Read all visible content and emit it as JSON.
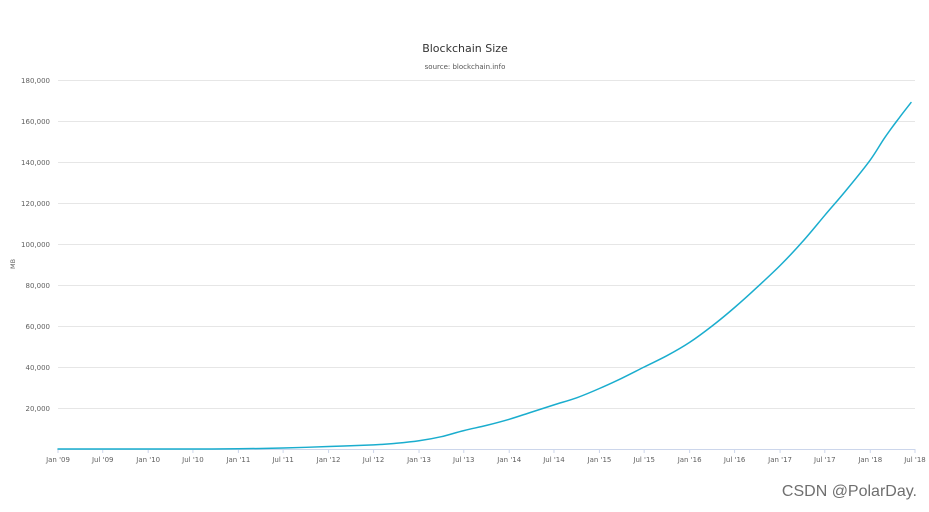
{
  "chart_data": {
    "type": "line",
    "title": "Blockchain Size",
    "subtitle": "source: blockchain.info",
    "xlabel": "",
    "ylabel": "MB",
    "ylim": [
      0,
      180000
    ],
    "yticks": [
      20000,
      40000,
      60000,
      80000,
      100000,
      120000,
      140000,
      160000,
      180000
    ],
    "ytick_labels": [
      "20,000",
      "40,000",
      "60,000",
      "80,000",
      "100,000",
      "120,000",
      "140,000",
      "160,000",
      "180,000"
    ],
    "xlim": [
      "2009-01-01",
      "2018-07-01"
    ],
    "xticks": [
      "2009-01-01",
      "2009-07-01",
      "2010-01-01",
      "2010-07-01",
      "2011-01-01",
      "2011-07-01",
      "2012-01-01",
      "2012-07-01",
      "2013-01-01",
      "2013-07-01",
      "2014-01-01",
      "2014-07-01",
      "2015-01-01",
      "2015-07-01",
      "2016-01-01",
      "2016-07-01",
      "2017-01-01",
      "2017-07-01",
      "2018-01-01",
      "2018-07-01"
    ],
    "xtick_labels": [
      "Jan '09",
      "Jul '09",
      "Jan '10",
      "Jul '10",
      "Jan '11",
      "Jul '11",
      "Jan '12",
      "Jul '12",
      "Jan '13",
      "Jul '13",
      "Jan '14",
      "Jul '14",
      "Jan '15",
      "Jul '15",
      "Jan '16",
      "Jul '16",
      "Jan '17",
      "Jul '17",
      "Jan '18",
      "Jul '18"
    ],
    "grid": true,
    "legend": "none",
    "series": [
      {
        "color": "#1aadce",
        "x": [
          "2009-01-01",
          "2009-07-01",
          "2010-01-01",
          "2010-07-01",
          "2011-01-01",
          "2011-07-01",
          "2012-01-01",
          "2012-07-01",
          "2012-10-01",
          "2013-01-01",
          "2013-04-01",
          "2013-07-01",
          "2013-10-01",
          "2014-01-01",
          "2014-04-01",
          "2014-07-01",
          "2014-10-01",
          "2015-01-01",
          "2015-04-01",
          "2015-07-01",
          "2015-10-01",
          "2016-01-01",
          "2016-04-01",
          "2016-07-01",
          "2016-10-01",
          "2017-01-01",
          "2017-04-01",
          "2017-07-01",
          "2017-10-01",
          "2018-01-01",
          "2018-03-01",
          "2018-05-01",
          "2018-06-15"
        ],
        "y": [
          0,
          0,
          0,
          0,
          100,
          500,
          1200,
          2000,
          2800,
          4000,
          6000,
          9000,
          11500,
          14500,
          18000,
          21500,
          25000,
          29500,
          34500,
          40000,
          45500,
          52000,
          60000,
          69000,
          79000,
          89500,
          101000,
          114000,
          127000,
          141000,
          152000,
          162000,
          169000
        ]
      }
    ]
  },
  "watermark": "CSDN @PolarDay."
}
